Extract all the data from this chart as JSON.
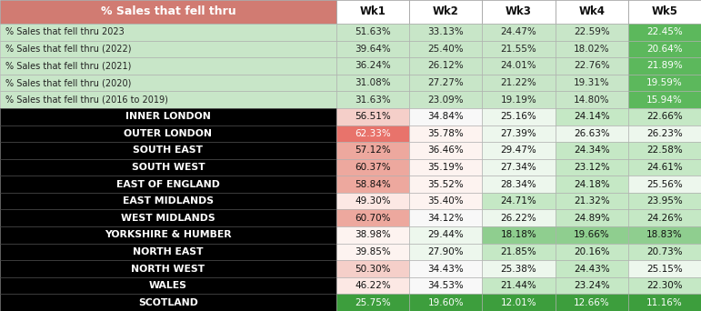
{
  "title": "% Sales that fell thru",
  "columns": [
    "Wk1",
    "Wk2",
    "Wk3",
    "Wk4",
    "Wk5"
  ],
  "top_rows": [
    {
      "label": "% Sales that fell thru 2023",
      "values": [
        51.63,
        33.13,
        24.47,
        22.59,
        22.45
      ]
    },
    {
      "label": "% Sales that fell thru (2022)",
      "values": [
        39.64,
        25.4,
        21.55,
        18.02,
        20.64
      ]
    },
    {
      "label": "% Sales that fell thru (2021)",
      "values": [
        36.24,
        26.12,
        24.01,
        22.76,
        21.89
      ]
    },
    {
      "label": "% Sales that fell thru (2020)",
      "values": [
        31.08,
        27.27,
        21.22,
        19.31,
        19.59
      ]
    },
    {
      "label": "% Sales that fell thru (2016 to 2019)",
      "values": [
        31.63,
        23.09,
        19.19,
        14.8,
        15.94
      ]
    }
  ],
  "region_rows": [
    {
      "label": "INNER LONDON",
      "values": [
        56.51,
        34.84,
        25.16,
        24.14,
        22.66
      ]
    },
    {
      "label": "OUTER LONDON",
      "values": [
        62.33,
        35.78,
        27.39,
        26.63,
        26.23
      ]
    },
    {
      "label": "SOUTH EAST",
      "values": [
        57.12,
        36.46,
        29.47,
        24.34,
        22.58
      ]
    },
    {
      "label": "SOUTH WEST",
      "values": [
        60.37,
        35.19,
        27.34,
        23.12,
        24.61
      ]
    },
    {
      "label": "EAST OF ENGLAND",
      "values": [
        58.84,
        35.52,
        28.34,
        24.18,
        25.56
      ]
    },
    {
      "label": "EAST MIDLANDS",
      "values": [
        49.3,
        35.4,
        24.71,
        21.32,
        23.95
      ]
    },
    {
      "label": "WEST MIDLANDS",
      "values": [
        60.7,
        34.12,
        26.22,
        24.89,
        24.26
      ]
    },
    {
      "label": "YORKSHIRE & HUMBER",
      "values": [
        38.98,
        29.44,
        18.18,
        19.66,
        18.83
      ]
    },
    {
      "label": "NORTH EAST",
      "values": [
        39.85,
        27.9,
        21.85,
        20.16,
        20.73
      ]
    },
    {
      "label": "NORTH WEST",
      "values": [
        50.3,
        34.43,
        25.38,
        24.43,
        25.15
      ]
    },
    {
      "label": "WALES",
      "values": [
        46.22,
        34.53,
        21.44,
        23.24,
        22.3
      ]
    },
    {
      "label": "SCOTLAND",
      "values": [
        25.75,
        19.6,
        12.01,
        12.66,
        11.16
      ]
    }
  ],
  "header_bg": "#d17b72",
  "header_text": "#ffffff",
  "top_label_bg": "#c8e6c8",
  "top_label_text": "#222222",
  "region_label_bg": "#000000",
  "region_label_text": "#ffffff",
  "col_header_bg": "#ffffff",
  "col_header_text": "#111111",
  "wk5_top_bg": "#5cb85c",
  "wk5_top_text": "#ffffff",
  "scotland_bg": "#3d9e3d",
  "scotland_text": "#ffffff"
}
